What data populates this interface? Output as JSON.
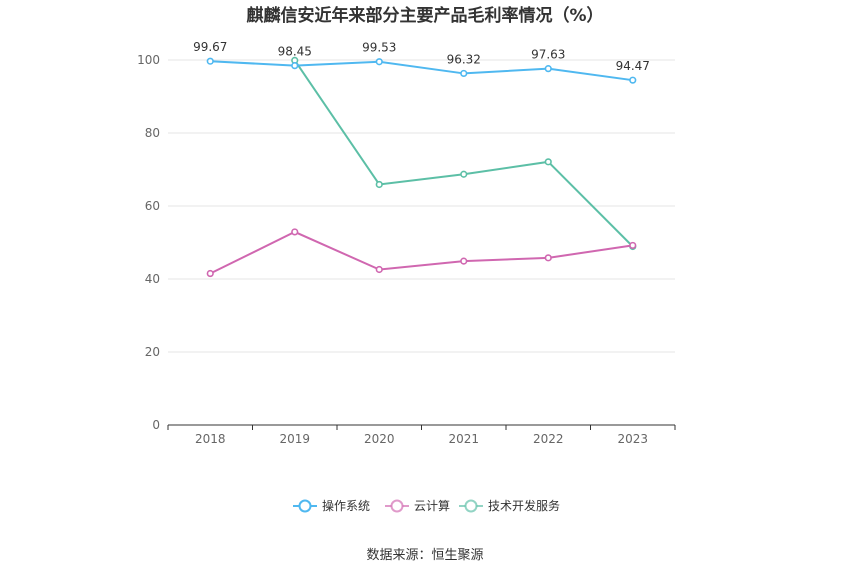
{
  "chart_data": {
    "type": "line",
    "title": "麒麟信安近年来部分主要产品毛利率情况（%）",
    "categories": [
      "2018",
      "2019",
      "2020",
      "2021",
      "2022",
      "2023"
    ],
    "ylim": [
      0,
      100
    ],
    "yticks": [
      0,
      20,
      40,
      60,
      80,
      100
    ],
    "grid": true,
    "legend_position": "bottom",
    "series": [
      {
        "name": "操作系统",
        "color": "#4fb8f0",
        "values": [
          99.67,
          98.45,
          99.53,
          96.32,
          97.63,
          94.47
        ],
        "show_labels": true
      },
      {
        "name": "云计算",
        "color": "#d067b0",
        "values": [
          41.5,
          52.9,
          42.6,
          44.9,
          45.8,
          49.2
        ],
        "show_labels": false
      },
      {
        "name": "技术开发服务",
        "color": "#5cbfa6",
        "values": [
          null,
          99.9,
          65.9,
          68.7,
          72.1,
          48.9
        ],
        "show_labels": false
      }
    ],
    "source": "数据来源：恒生聚源"
  }
}
